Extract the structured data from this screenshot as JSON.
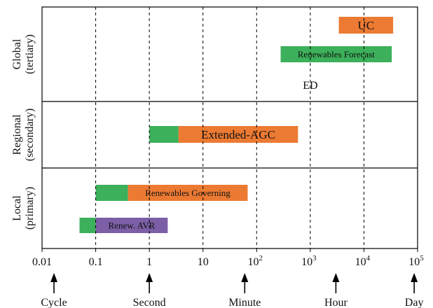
{
  "colors": {
    "green": "#3cb05a",
    "orange": "#ec7a33",
    "purple": "#7c5fa6"
  },
  "rows": [
    {
      "line1": "Global",
      "line2": "(tertiary)"
    },
    {
      "line1": "Regional",
      "line2": "(secondary)"
    },
    {
      "line1": "Local",
      "line2": "(primary)"
    }
  ],
  "x_ticks": [
    {
      "label": "0.01"
    },
    {
      "label": "0.1"
    },
    {
      "label": "1"
    },
    {
      "label": "10"
    },
    {
      "base": "10",
      "exp": "2"
    },
    {
      "base": "10",
      "exp": "3"
    },
    {
      "base": "10",
      "exp": "4"
    },
    {
      "base": "10",
      "exp": "5"
    }
  ],
  "time_scales": [
    {
      "label": "Cycle",
      "pos": 0.0167
    },
    {
      "label": "Second",
      "pos": 1
    },
    {
      "label": "Minute",
      "pos": 60
    },
    {
      "label": "Hour",
      "pos": 3000
    },
    {
      "label": "Day",
      "pos": 86400
    }
  ],
  "bars": [
    {
      "label": "UC",
      "row": 0,
      "slot": 0,
      "segments": [
        {
          "start": 3400,
          "end": 35000,
          "color": "orange"
        }
      ],
      "label_size": "lg"
    },
    {
      "label": "Renewables Forecast",
      "row": 0,
      "slot": 1,
      "segments": [
        {
          "start": 280,
          "end": 33000,
          "color": "green"
        }
      ],
      "label_size": "sm"
    },
    {
      "label": "Extended-AGC",
      "row": 1,
      "slot": 0,
      "segments": [
        {
          "start": 1,
          "end": 3.5,
          "color": "green"
        },
        {
          "start": 3.5,
          "end": 590,
          "color": "orange"
        }
      ],
      "label_size": "lg"
    },
    {
      "label": "Renewables Governing",
      "row": 2,
      "slot": 0,
      "segments": [
        {
          "start": 0.1,
          "end": 0.4,
          "color": "green"
        },
        {
          "start": 0.4,
          "end": 68,
          "color": "orange"
        }
      ],
      "label_size": "sm"
    },
    {
      "label": "Renew. AVR",
      "row": 2,
      "slot": 1,
      "segments": [
        {
          "start": 0.05,
          "end": 0.1,
          "color": "green"
        },
        {
          "start": 0.1,
          "end": 2.2,
          "color": "purple"
        }
      ],
      "label_size": "sm"
    }
  ],
  "annotations": [
    {
      "label": "ED",
      "pos": 1000,
      "row": 0
    }
  ]
}
